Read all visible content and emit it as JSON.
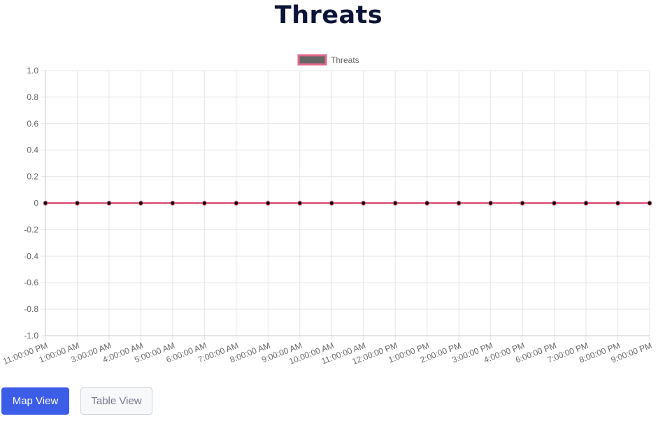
{
  "page": {
    "title": "Threats"
  },
  "buttons": {
    "map_view": "Map View",
    "table_view": "Table View"
  },
  "colors": {
    "title": "#0c1538",
    "series_line": "#e0698a",
    "legend_fill": "#666666",
    "point": "#000000",
    "grid": "#e6e6e6",
    "primary_button": "#3b5de7"
  },
  "chart_data": {
    "type": "line",
    "title": "",
    "xlabel": "",
    "ylabel": "",
    "legend_position": "top",
    "grid": true,
    "ylim": [
      -1.0,
      1.0
    ],
    "yticks": [
      "1.0",
      "0.8",
      "0.6",
      "0.4",
      "0.2",
      "0",
      "-0.2",
      "-0.4",
      "-0.6",
      "-0.8",
      "-1.0"
    ],
    "categories": [
      "11:00:00 PM",
      "1:00:00 AM",
      "3:00:00 AM",
      "4:00:00 AM",
      "5:00:00 AM",
      "6:00:00 AM",
      "7:00:00 AM",
      "8:00:00 AM",
      "9:00:00 AM",
      "10:00:00 AM",
      "11:00:00 AM",
      "12:00:00 PM",
      "1:00:00 PM",
      "2:00:00 PM",
      "3:00:00 PM",
      "4:00:00 PM",
      "6:00:00 PM",
      "7:00:00 PM",
      "8:00:00 PM",
      "9:00:00 PM"
    ],
    "series": [
      {
        "name": "Threats",
        "values": [
          0,
          0,
          0,
          0,
          0,
          0,
          0,
          0,
          0,
          0,
          0,
          0,
          0,
          0,
          0,
          0,
          0,
          0,
          0,
          0
        ]
      }
    ]
  }
}
